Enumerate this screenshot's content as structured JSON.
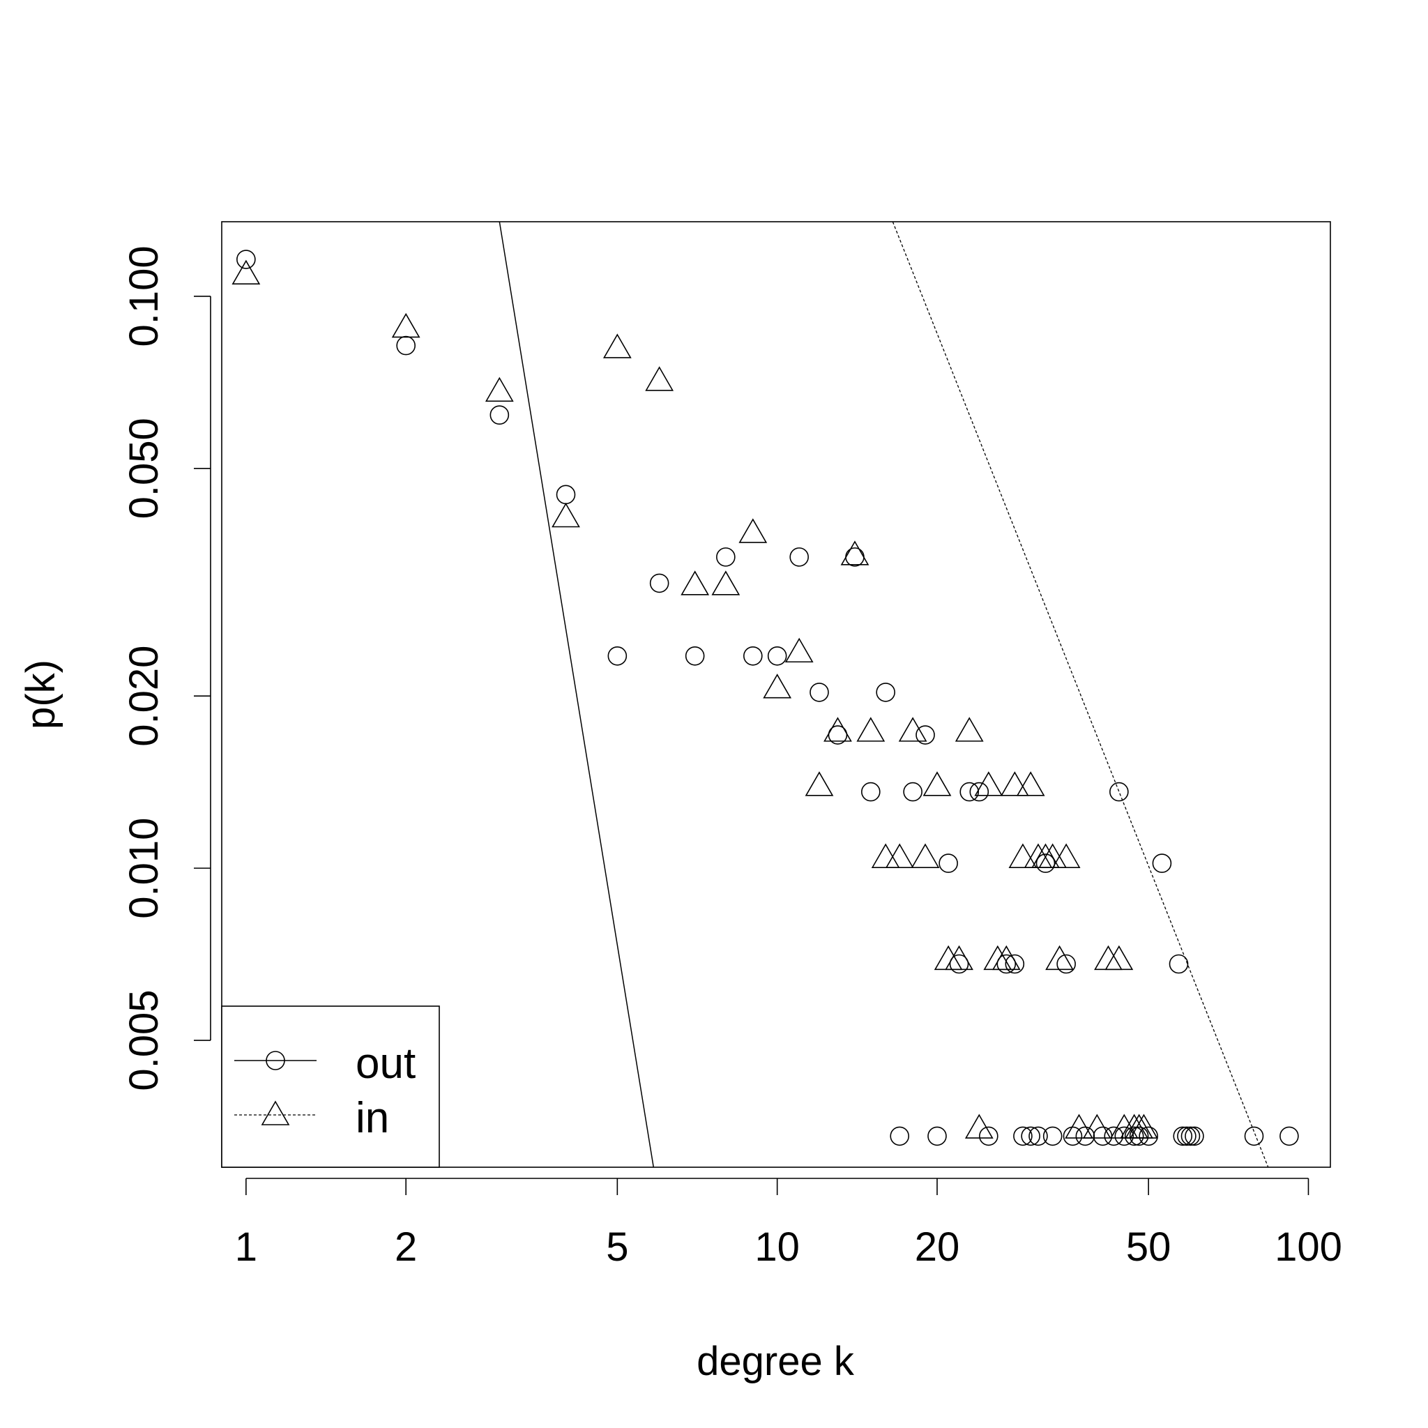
{
  "chart_data": {
    "type": "scatter",
    "title": "",
    "xlabel": "degree k",
    "ylabel": "p(k)",
    "x_scale": "log",
    "y_scale": "log",
    "xlim": [
      0.9,
      110
    ],
    "ylim": [
      0.003,
      0.135
    ],
    "x_ticks": [
      1,
      2,
      5,
      10,
      20,
      50,
      100
    ],
    "x_tick_labels": [
      "1",
      "2",
      "5",
      "10",
      "20",
      "50",
      "100"
    ],
    "y_ticks": [
      0.005,
      0.01,
      0.02,
      0.05,
      0.1
    ],
    "y_tick_labels": [
      "0.005",
      "0.010",
      "0.020",
      "0.050",
      "0.100"
    ],
    "grid": false,
    "legend_position": "bottom-left",
    "series": [
      {
        "name": "out",
        "marker": "circle",
        "line": "solid",
        "fit_line": {
          "from": [
            3.0,
            0.135
          ],
          "to": [
            5.85,
            0.003
          ]
        },
        "points": [
          [
            1,
            0.116
          ],
          [
            2,
            0.082
          ],
          [
            3,
            0.062
          ],
          [
            4,
            0.045
          ],
          [
            5,
            0.0235
          ],
          [
            6,
            0.0315
          ],
          [
            7,
            0.0235
          ],
          [
            8,
            0.035
          ],
          [
            9,
            0.0235
          ],
          [
            10,
            0.0235
          ],
          [
            11,
            0.035
          ],
          [
            12,
            0.0203
          ],
          [
            13,
            0.0171
          ],
          [
            14,
            0.035
          ],
          [
            15,
            0.0136
          ],
          [
            16,
            0.0203
          ],
          [
            17,
            0.0034
          ],
          [
            18,
            0.0136
          ],
          [
            19,
            0.0171
          ],
          [
            20,
            0.0034
          ],
          [
            21,
            0.0102
          ],
          [
            22,
            0.0068
          ],
          [
            23,
            0.0136
          ],
          [
            24,
            0.0136
          ],
          [
            25,
            0.0034
          ],
          [
            27,
            0.0068
          ],
          [
            28,
            0.0068
          ],
          [
            29,
            0.0034
          ],
          [
            30,
            0.0034
          ],
          [
            31,
            0.0034
          ],
          [
            32,
            0.0102
          ],
          [
            33,
            0.0034
          ],
          [
            35,
            0.0068
          ],
          [
            36,
            0.0034
          ],
          [
            38,
            0.0034
          ],
          [
            41,
            0.0034
          ],
          [
            43,
            0.0034
          ],
          [
            44,
            0.0136
          ],
          [
            45,
            0.0034
          ],
          [
            47,
            0.0034
          ],
          [
            48,
            0.0034
          ],
          [
            50,
            0.0034
          ],
          [
            53,
            0.0102
          ],
          [
            57,
            0.0068
          ],
          [
            58,
            0.0034
          ],
          [
            59,
            0.0034
          ],
          [
            60,
            0.0034
          ],
          [
            61,
            0.0034
          ],
          [
            79,
            0.0034
          ],
          [
            92,
            0.0034
          ]
        ]
      },
      {
        "name": "in",
        "marker": "triangle",
        "line": "dashed",
        "fit_line": {
          "from": [
            16.5,
            0.135
          ],
          "to": [
            84,
            0.003
          ]
        },
        "points": [
          [
            1,
            0.109
          ],
          [
            2,
            0.088
          ],
          [
            3,
            0.068
          ],
          [
            4,
            0.041
          ],
          [
            5,
            0.081
          ],
          [
            6,
            0.071
          ],
          [
            7,
            0.0312
          ],
          [
            8,
            0.0312
          ],
          [
            9,
            0.0385
          ],
          [
            10,
            0.0206
          ],
          [
            11,
            0.0238
          ],
          [
            12,
            0.0139
          ],
          [
            13,
            0.0173
          ],
          [
            14,
            0.0352
          ],
          [
            15,
            0.0173
          ],
          [
            16,
            0.0104
          ],
          [
            17,
            0.0104
          ],
          [
            18,
            0.0173
          ],
          [
            19,
            0.0104
          ],
          [
            20,
            0.0139
          ],
          [
            21,
            0.0069
          ],
          [
            22,
            0.0069
          ],
          [
            23,
            0.0173
          ],
          [
            24,
            0.0035
          ],
          [
            25,
            0.0139
          ],
          [
            26,
            0.0069
          ],
          [
            27,
            0.0069
          ],
          [
            28,
            0.0139
          ],
          [
            29,
            0.0104
          ],
          [
            30,
            0.0139
          ],
          [
            31,
            0.0104
          ],
          [
            32,
            0.0104
          ],
          [
            33,
            0.0104
          ],
          [
            34,
            0.0069
          ],
          [
            35,
            0.0104
          ],
          [
            37,
            0.0035
          ],
          [
            40,
            0.0035
          ],
          [
            42,
            0.0069
          ],
          [
            44,
            0.0069
          ],
          [
            45,
            0.0035
          ],
          [
            47,
            0.0035
          ],
          [
            48,
            0.0035
          ],
          [
            49,
            0.0035
          ]
        ]
      }
    ]
  }
}
